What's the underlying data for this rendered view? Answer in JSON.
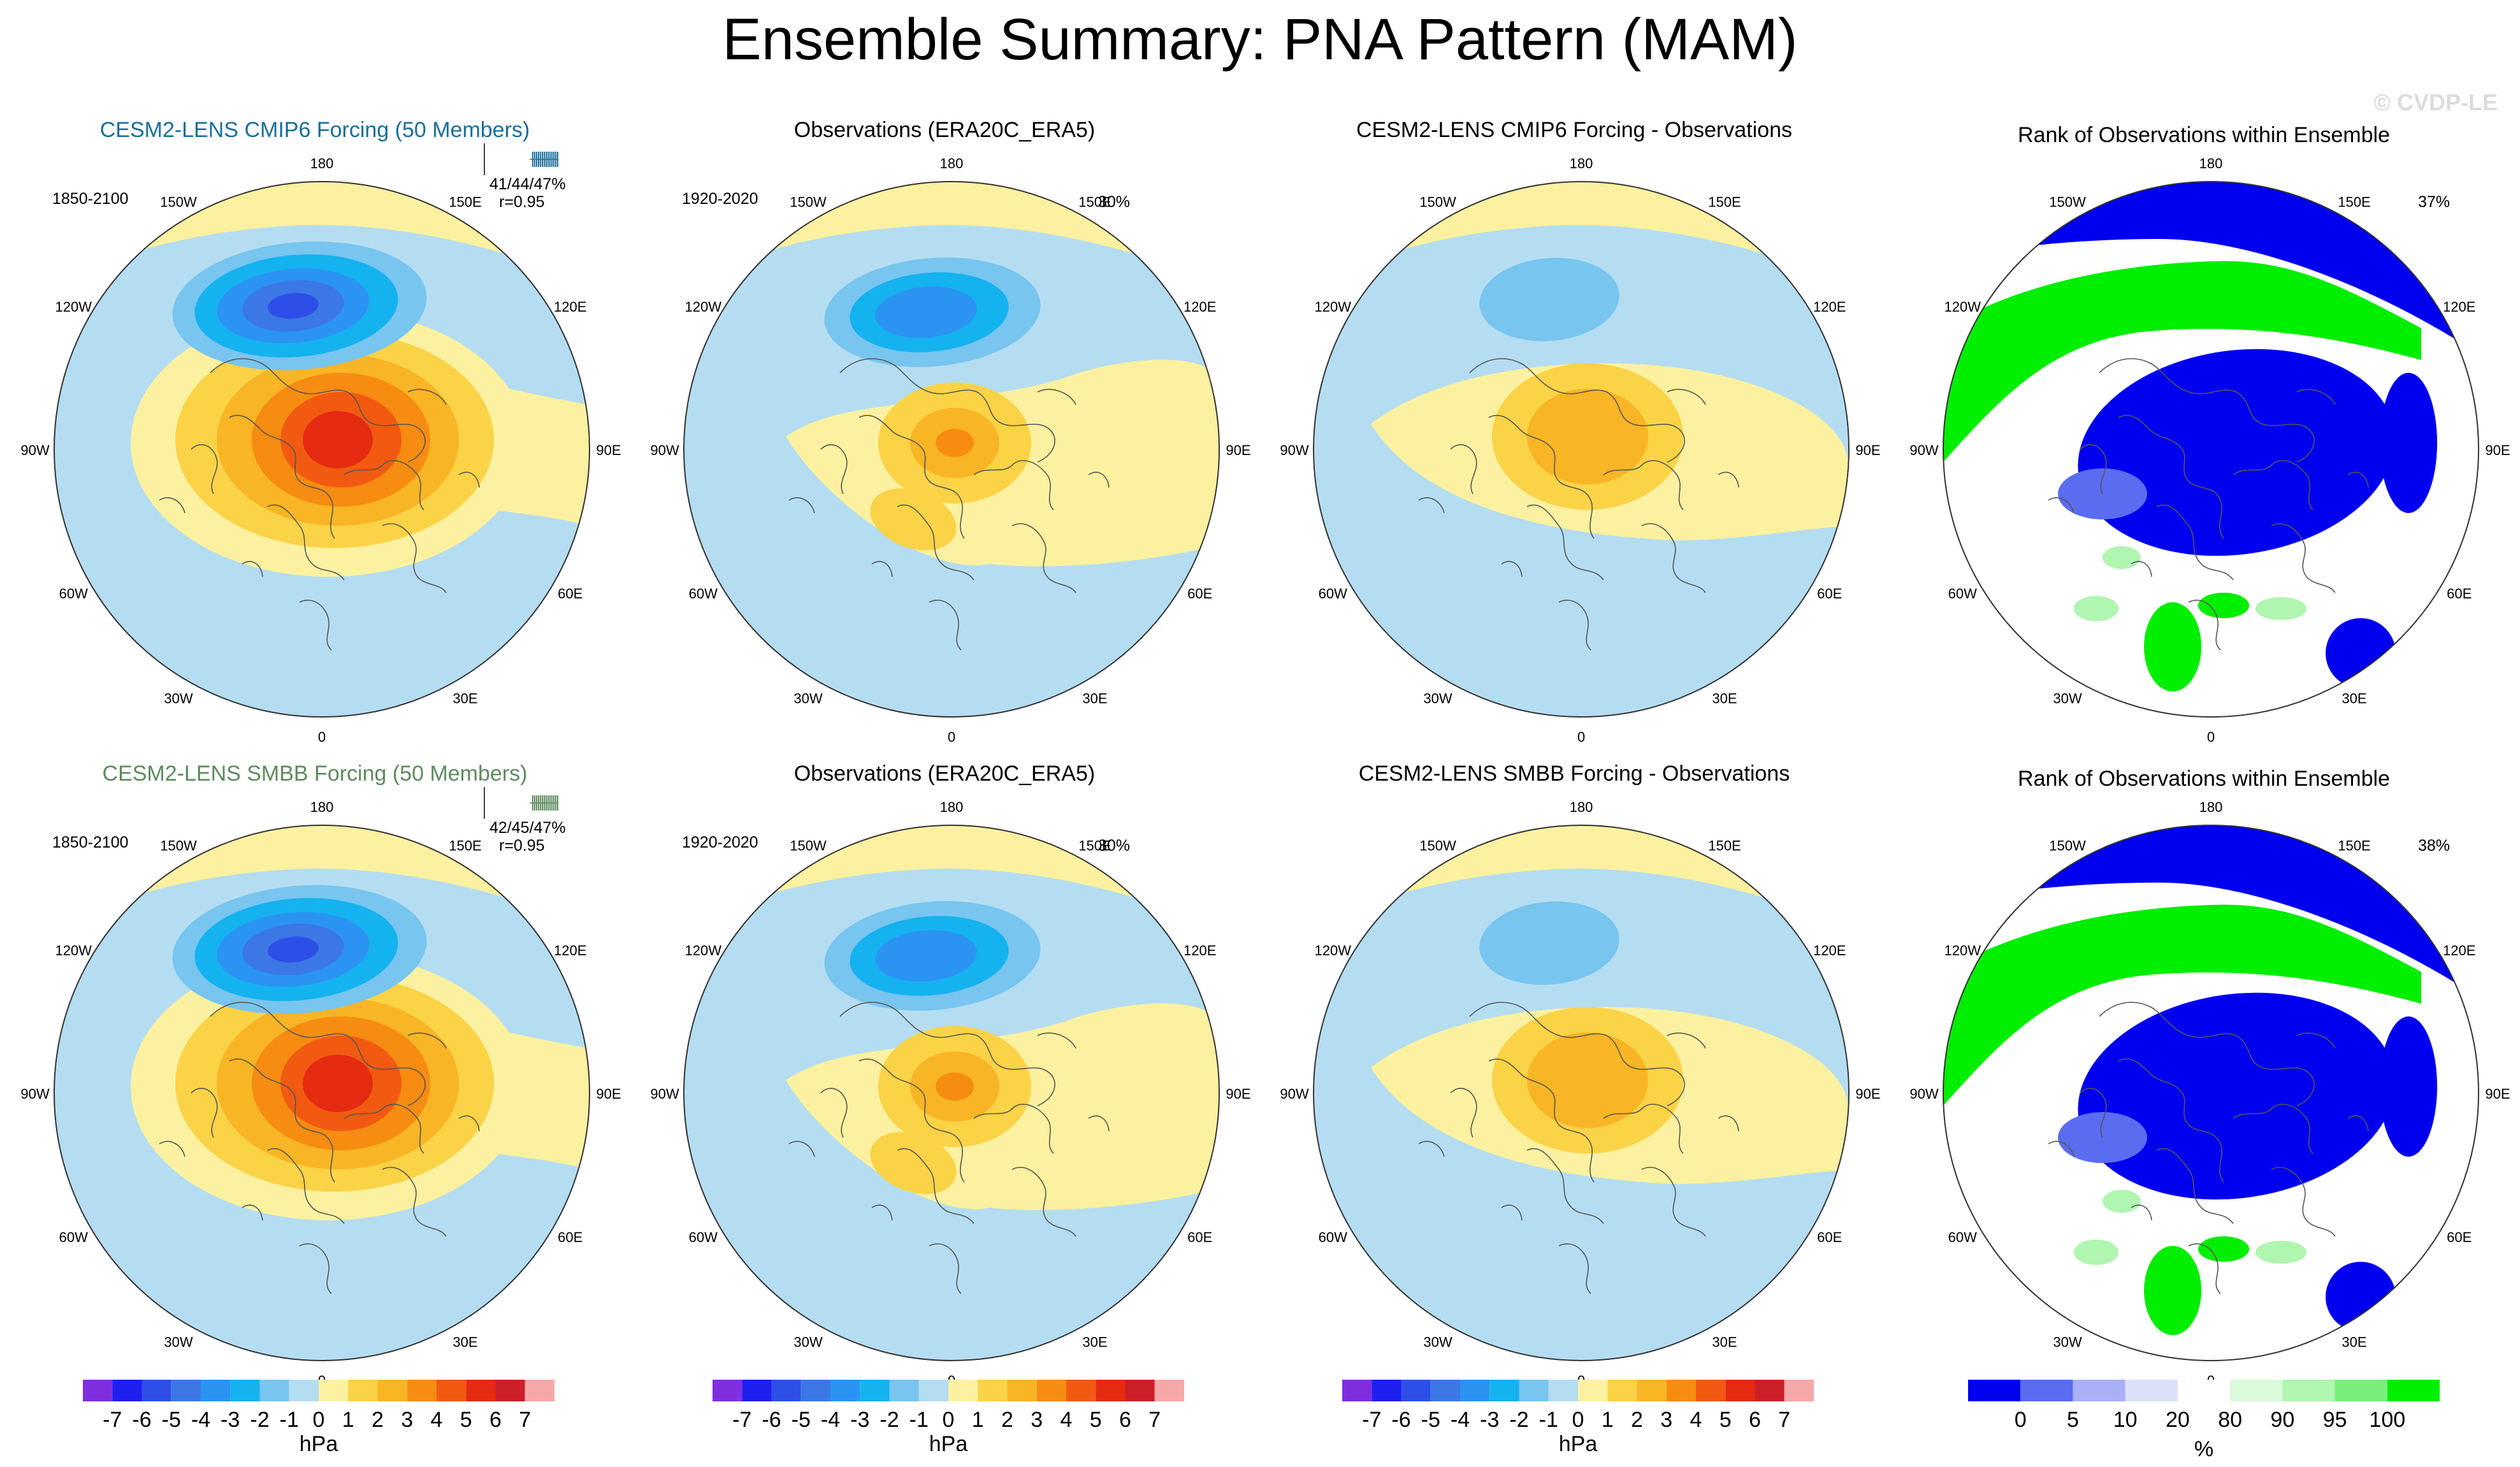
{
  "title": "Ensemble Summary: PNA Pattern (MAM)",
  "watermark": "© CVDP-LE",
  "longitude_labels": [
    "180",
    "150E",
    "120E",
    "90E",
    "60E",
    "30E",
    "0",
    "30W",
    "60W",
    "90W",
    "120W",
    "150W"
  ],
  "colors": {
    "ocean_base": "#b5ddf1",
    "land_pos": "#fbf1a0",
    "title_blue": "#1a6e9a",
    "title_green": "#5e8a5e"
  },
  "rows": [
    {
      "model_title": "CESM2-LENS CMIP6 Forcing (50 Members)",
      "model_period": "1850-2100",
      "model_stats_pct": "41/44/47%",
      "model_stats_r": "r=0.95",
      "obs_title": "Observations (ERA20C_ERA5)",
      "obs_period": "1920-2020",
      "obs_pct": "30%",
      "diff_title": "CESM2-LENS CMIP6 Forcing - Observations",
      "rank_title": "Rank of Observations within Ensemble",
      "rank_pct": "37%"
    },
    {
      "model_title": "CESM2-LENS SMBB Forcing (50 Members)",
      "model_period": "1850-2100",
      "model_stats_pct": "42/45/47%",
      "model_stats_r": "r=0.95",
      "obs_title": "Observations (ERA20C_ERA5)",
      "obs_period": "1920-2020",
      "obs_pct": "30%",
      "diff_title": "CESM2-LENS SMBB Forcing - Observations",
      "rank_title": "Rank of Observations within Ensemble",
      "rank_pct": "38%"
    }
  ],
  "hpa_colorbar": {
    "unit": "hPa",
    "ticks": [
      "-7",
      "-6",
      "-5",
      "-4",
      "-3",
      "-2",
      "-1",
      "0",
      "1",
      "2",
      "3",
      "4",
      "5",
      "6",
      "7"
    ],
    "colors": [
      "#7f2fe0",
      "#1f1fef",
      "#2d4fe8",
      "#3b78e6",
      "#2b94f2",
      "#15b2f0",
      "#78c5ef",
      "#b5ddf1",
      "#fbf1a0",
      "#fbd347",
      "#f8b525",
      "#f78c12",
      "#f25a12",
      "#e52b11",
      "#cc1f28",
      "#f6a8a8"
    ]
  },
  "rank_colorbar": {
    "unit": "%",
    "ticks": [
      "0",
      "5",
      "10",
      "20",
      "80",
      "90",
      "95",
      "100"
    ],
    "colors": [
      "#0000ee",
      "#5a6cf0",
      "#a9b0f5",
      "#dce0fa",
      "#ffffff",
      "#dcfadc",
      "#b0f5b0",
      "#7aee7a",
      "#00ee00"
    ]
  }
}
